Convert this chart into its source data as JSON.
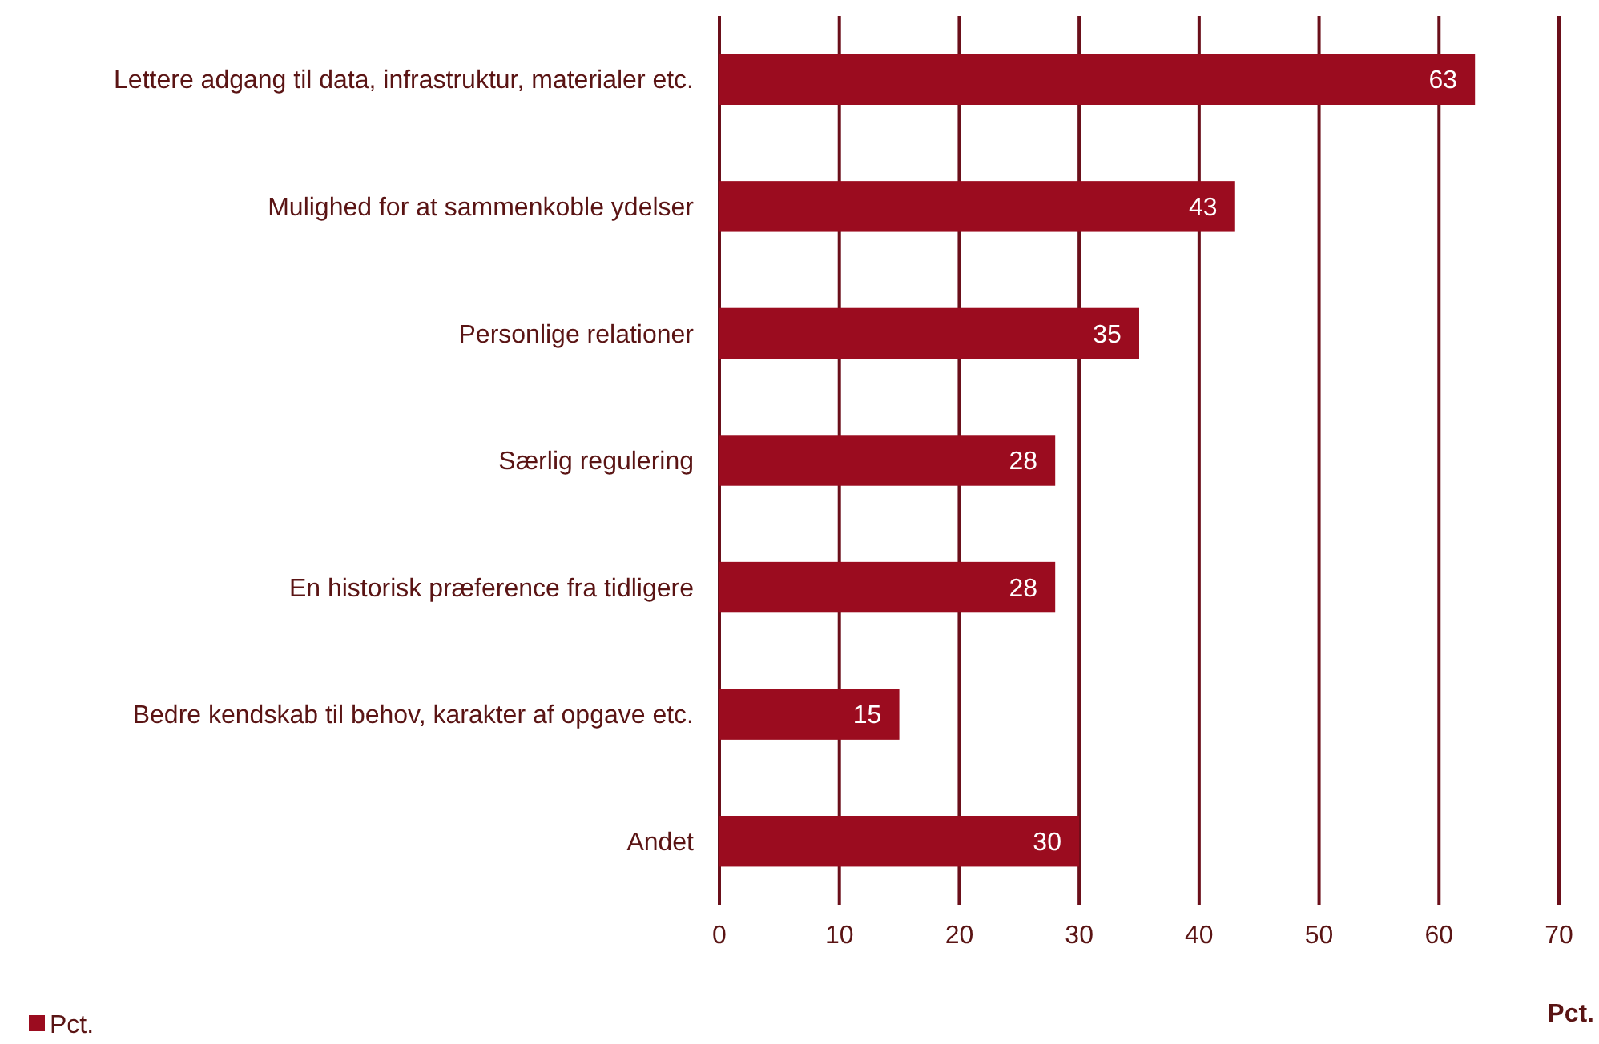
{
  "chart_data": {
    "type": "bar",
    "orientation": "horizontal",
    "categories": [
      "Lettere adgang til data, infrastruktur, materialer etc.",
      "Mulighed for at sammenkoble ydelser",
      "Personlige relationer",
      "Særlig regulering",
      "En historisk præference fra tidligere",
      "Bedre kendskab til behov, karakter af opgave etc.",
      "Andet"
    ],
    "series": [
      {
        "name": "Pct.",
        "color": "#9b0c1f",
        "values": [
          63,
          43,
          35,
          28,
          28,
          15,
          30
        ]
      }
    ],
    "xlim": [
      0,
      70
    ],
    "xticks": [
      0,
      10,
      20,
      30,
      40,
      50,
      60,
      70
    ],
    "xlabel": "Pct.",
    "grid": "x",
    "data_labels": true,
    "legend": "bottom left"
  }
}
